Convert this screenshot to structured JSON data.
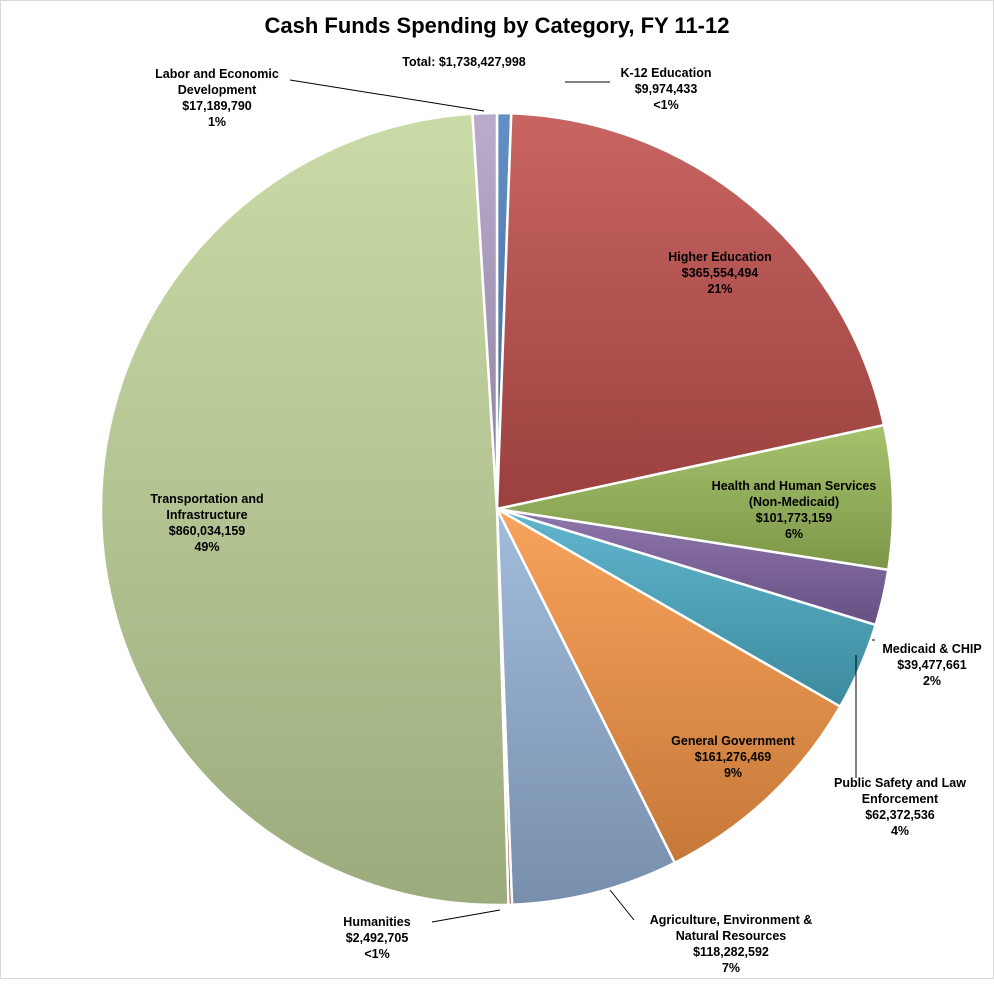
{
  "chart_data": {
    "type": "pie",
    "title": "Cash Funds Spending by Category, FY 11-12",
    "total_label": "Total: $1,738,427,998",
    "slices": [
      {
        "key": "k12",
        "lines": [
          "K-12 Education",
          "$9,974,433",
          "<1%"
        ],
        "value": 9974433,
        "color": "#4f81bd"
      },
      {
        "key": "higher-ed",
        "lines": [
          "Higher Education",
          "$365,554,494",
          "21%"
        ],
        "value": 365554494,
        "color": "#c0504d"
      },
      {
        "key": "hhs",
        "lines": [
          "Health and Human Services",
          "(Non-Medicaid)",
          "$101,773,159",
          "6%"
        ],
        "value": 101773159,
        "color": "#9bbb59"
      },
      {
        "key": "medicaid",
        "lines": [
          "Medicaid & CHIP",
          "$39,477,661",
          "2%"
        ],
        "value": 39477661,
        "color": "#8064a2"
      },
      {
        "key": "public-safety",
        "lines": [
          "Public Safety and Law",
          "Enforcement",
          "$62,372,536",
          "4%"
        ],
        "value": 62372536,
        "color": "#4bacc6"
      },
      {
        "key": "general-gov",
        "lines": [
          "General Government",
          "$161,276,469",
          "9%"
        ],
        "value": 161276469,
        "color": "#f79646"
      },
      {
        "key": "agriculture",
        "lines": [
          "Agriculture, Environment &",
          "Natural Resources",
          "$118,282,592",
          "7%"
        ],
        "value": 118282592,
        "color": "#95b3d7"
      },
      {
        "key": "humanities",
        "lines": [
          "Humanities",
          "$2,492,705",
          "<1%"
        ],
        "value": 2492705,
        "color": "#c0504d"
      },
      {
        "key": "transportation",
        "lines": [
          "Transportation and",
          "Infrastructure",
          "$860,034,159",
          "49%"
        ],
        "value": 860034159,
        "color": "#c3d69b"
      },
      {
        "key": "labor",
        "lines": [
          "Labor and Economic",
          "Development",
          "$17,189,790",
          "1%"
        ],
        "value": 17189790,
        "color": "#b2a1c7"
      }
    ]
  }
}
